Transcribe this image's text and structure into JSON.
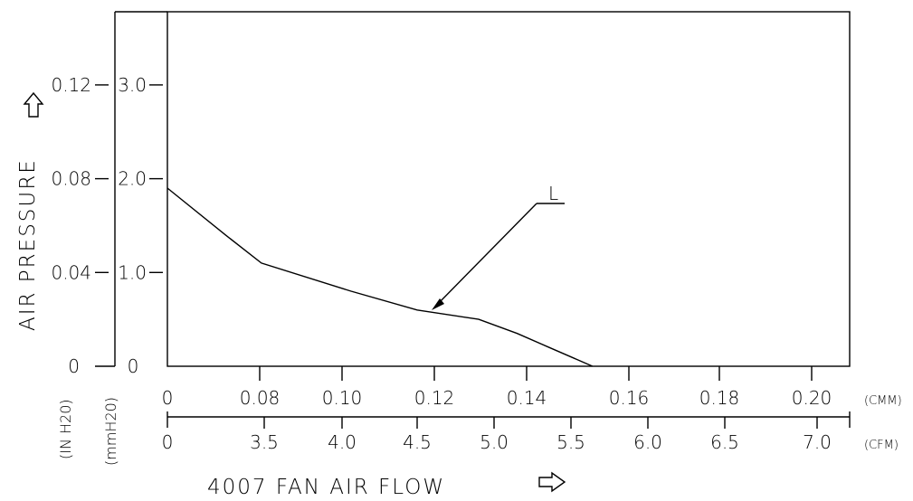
{
  "chart_data": {
    "type": "line",
    "title": "",
    "ylabel": "AIR PRESSURE",
    "xlabel": "4007 FAN  AIR FLOW",
    "y_axes": [
      {
        "unit": "(IN H20)",
        "ticks": [
          "0",
          "0.04",
          "0.08",
          "0.12"
        ]
      },
      {
        "unit": "(mmH20)",
        "ticks": [
          "0",
          "1.0",
          "2.0",
          "3.0"
        ]
      }
    ],
    "x_axes": [
      {
        "unit": "(CMM)",
        "ticks": [
          "0",
          "0.08",
          "0.10",
          "0.12",
          "0.14",
          "0.16",
          "0.18",
          "0.20"
        ]
      },
      {
        "unit": "(CFM)",
        "ticks": [
          "0",
          "3.5",
          "4.0",
          "4.5",
          "5.0",
          "5.5",
          "6.0",
          "6.5",
          "7.0"
        ]
      }
    ],
    "ylim_mmH2O": [
      0,
      3.0
    ],
    "grid": false,
    "series": [
      {
        "name": "L",
        "x_cfm": [
          0,
          2.1,
          3.4,
          4.06,
          4.5,
          4.9,
          5.15,
          5.36,
          5.64
        ],
        "y_mmH2O": [
          1.9,
          1.4,
          1.1,
          0.8,
          0.6,
          0.5,
          0.35,
          0.2,
          0
        ]
      }
    ]
  }
}
